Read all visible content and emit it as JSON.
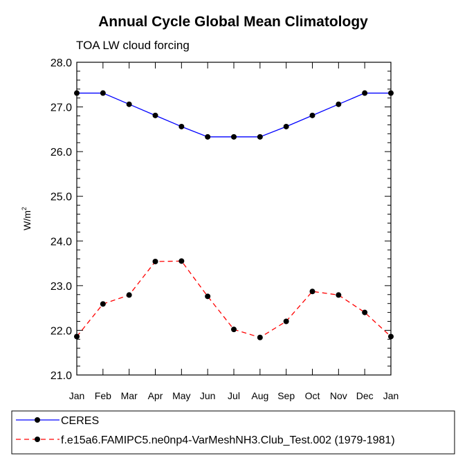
{
  "chart_data": {
    "type": "line",
    "title": "Annual Cycle Global Mean Climatology",
    "subtitle": "TOA LW cloud forcing",
    "ylabel_base": "W/m",
    "ylabel_sup": "2",
    "xlabel": "",
    "categories": [
      "Jan",
      "Feb",
      "Mar",
      "Apr",
      "May",
      "Jun",
      "Jul",
      "Aug",
      "Sep",
      "Oct",
      "Nov",
      "Dec",
      "Jan"
    ],
    "ylim": [
      21.0,
      28.0
    ],
    "yticks": [
      "21.0",
      "22.0",
      "23.0",
      "24.0",
      "25.0",
      "26.0",
      "27.0",
      "28.0"
    ],
    "series": [
      {
        "name": "CERES",
        "color": "#0000ff",
        "dash": "solid",
        "values": [
          27.31,
          27.31,
          27.06,
          26.81,
          26.56,
          26.33,
          26.33,
          26.33,
          26.56,
          26.81,
          27.06,
          27.31,
          27.31
        ]
      },
      {
        "name": "f.e15a6.FAMIPC5.ne0np4-VarMeshNH3.Club_Test.002 (1979-1981)",
        "color": "#ff0000",
        "dash": "dashed",
        "values": [
          21.86,
          22.59,
          22.79,
          23.54,
          23.55,
          22.76,
          22.02,
          21.84,
          22.2,
          22.87,
          22.79,
          22.4,
          21.86
        ]
      }
    ],
    "legend_position": "bottom"
  }
}
